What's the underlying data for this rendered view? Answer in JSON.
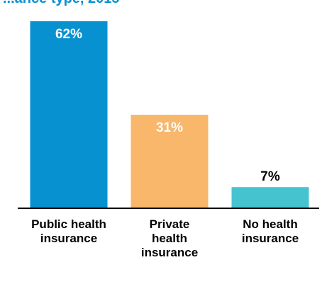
{
  "title": "...ance type, 2015",
  "chart_data": {
    "type": "bar",
    "categories": [
      [
        "Public health",
        "insurance"
      ],
      [
        "Private",
        "health",
        "insurance"
      ],
      [
        "No health",
        "insurance"
      ]
    ],
    "values": [
      62,
      31,
      7
    ],
    "value_labels": [
      "62%",
      "31%",
      "7%"
    ],
    "colors": [
      "#0891d1",
      "#f8b76b",
      "#45c4d0"
    ],
    "value_label_colors": [
      "#ffffff",
      "#ffffff",
      "#000000"
    ],
    "ylim": [
      0,
      62
    ],
    "grid": false,
    "legend": "none",
    "title_color": "#0891d1"
  }
}
